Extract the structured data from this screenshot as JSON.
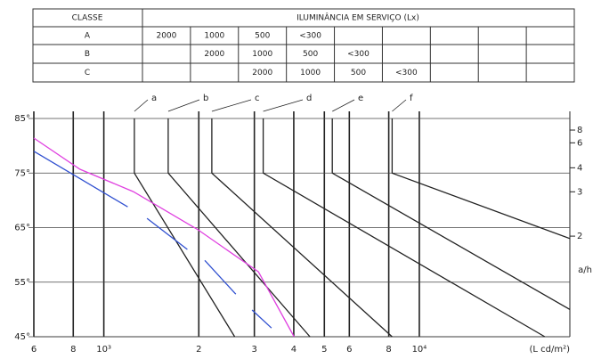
{
  "table": {
    "header": [
      "CLASSE",
      "ILUMINÂNCIA EM SERVIÇO (Lx)"
    ],
    "rows": [
      {
        "label": "A",
        "cells": [
          2000,
          1000,
          500,
          "<300",
          null,
          null,
          null,
          null,
          null
        ]
      },
      {
        "label": "B",
        "cells": [
          null,
          2000,
          1000,
          500,
          "<300",
          null,
          null,
          null,
          null
        ]
      },
      {
        "label": "C",
        "cells": [
          null,
          null,
          2000,
          1000,
          500,
          "<300",
          null,
          null,
          null
        ]
      }
    ]
  },
  "chart_data": {
    "type": "line",
    "xscale": "log",
    "y2scale": "arctan",
    "grid": true,
    "xlabel": "(L cd/m²)",
    "y2label": "a/h",
    "xlim": [
      600,
      30000
    ],
    "xticks": [
      {
        "value": 600,
        "label": "6"
      },
      {
        "value": 800,
        "label": "8"
      },
      {
        "value": 1000,
        "label": "10³"
      },
      {
        "value": 2000,
        "label": "2"
      },
      {
        "value": 3000,
        "label": "3"
      },
      {
        "value": 4000,
        "label": "4"
      },
      {
        "value": 5000,
        "label": "5"
      },
      {
        "value": 6000,
        "label": "6"
      },
      {
        "value": 8000,
        "label": "8"
      },
      {
        "value": 10000,
        "label": "10⁴"
      }
    ],
    "ylim": [
      45,
      85
    ],
    "yticks": [
      {
        "value": 85,
        "label": "85°"
      },
      {
        "value": 75,
        "label": "75°"
      },
      {
        "value": 65,
        "label": "65°"
      },
      {
        "value": 55,
        "label": "55°"
      },
      {
        "value": 45,
        "label": "45°"
      }
    ],
    "y2ticks": [
      8,
      6,
      4,
      3,
      2
    ],
    "series": [
      {
        "name": "a",
        "color": "#222222",
        "x": [
          1250,
          1250,
          2600
        ],
        "values": [
          85,
          75,
          45
        ]
      },
      {
        "name": "b",
        "color": "#222222",
        "x": [
          1600,
          1600,
          4500
        ],
        "values": [
          85,
          75,
          45
        ]
      },
      {
        "name": "c",
        "color": "#222222",
        "x": [
          2200,
          2200,
          8200
        ],
        "values": [
          85,
          75,
          45
        ]
      },
      {
        "name": "d",
        "color": "#222222",
        "x": [
          3200,
          3200,
          25000
        ],
        "values": [
          85,
          75,
          45
        ]
      },
      {
        "name": "e",
        "color": "#222222",
        "x": [
          5300,
          5300,
          30000
        ],
        "values": [
          85,
          75,
          50
        ]
      },
      {
        "name": "f",
        "color": "#222222",
        "x": [
          8200,
          8200,
          30000
        ],
        "values": [
          85,
          75,
          63
        ]
      }
    ],
    "curves": [
      {
        "color": "#e040e0",
        "x": [
          600,
          840,
          1240,
          1990,
          3090,
          4010
        ],
        "values": [
          81.4,
          75.7,
          71.6,
          64.6,
          56.9,
          45
        ]
      },
      {
        "color": "#3050d0",
        "x": [
          600,
          1190,
          null,
          1370,
          1840,
          null,
          2090,
          2620,
          null,
          2950,
          3400
        ],
        "values": [
          79,
          68.8,
          null,
          66.7,
          61,
          null,
          59,
          52.8,
          null,
          49.9,
          46.6
        ]
      }
    ]
  }
}
